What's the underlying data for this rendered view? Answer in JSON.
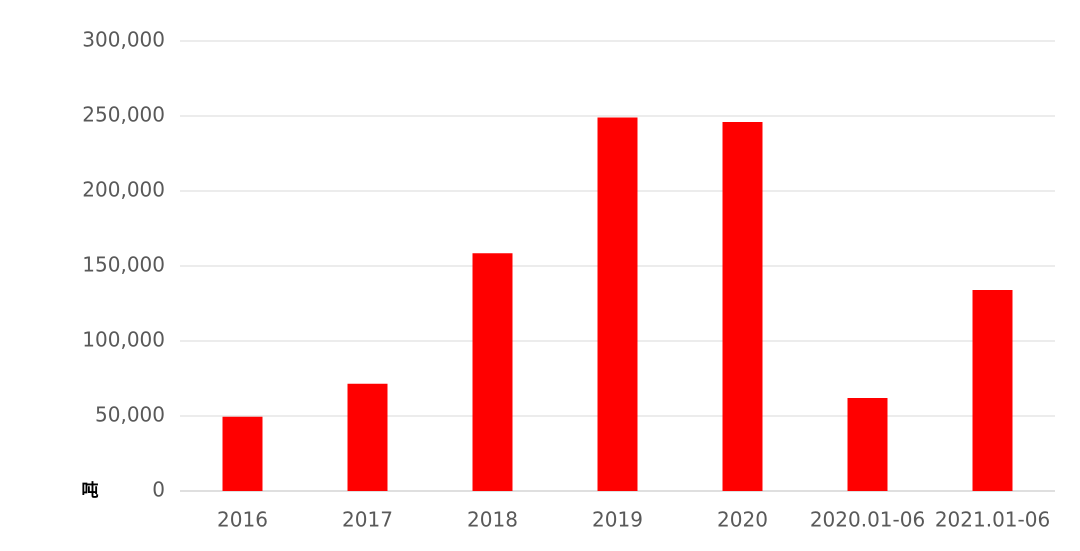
{
  "chart_data": {
    "type": "bar",
    "y_unit": "吨",
    "categories": [
      "2016",
      "2017",
      "2018",
      "2019",
      "2020",
      "2020.01-06",
      "2021.01-06"
    ],
    "values": [
      49500,
      71500,
      158500,
      249000,
      246000,
      62000,
      134000
    ],
    "color": "#ff0000",
    "ylim": [
      0,
      300000
    ],
    "yticks": [
      0,
      {
        "value": 50000,
        "label": "50,000"
      },
      {
        "value": 100000,
        "label": "100,000"
      },
      {
        "value": 150000,
        "label": "150,000"
      },
      {
        "value": 200000,
        "label": "200,000"
      },
      {
        "value": 250000,
        "label": "250,000"
      },
      {
        "value": 300000,
        "label": "300,000"
      }
    ],
    "grid": true
  }
}
